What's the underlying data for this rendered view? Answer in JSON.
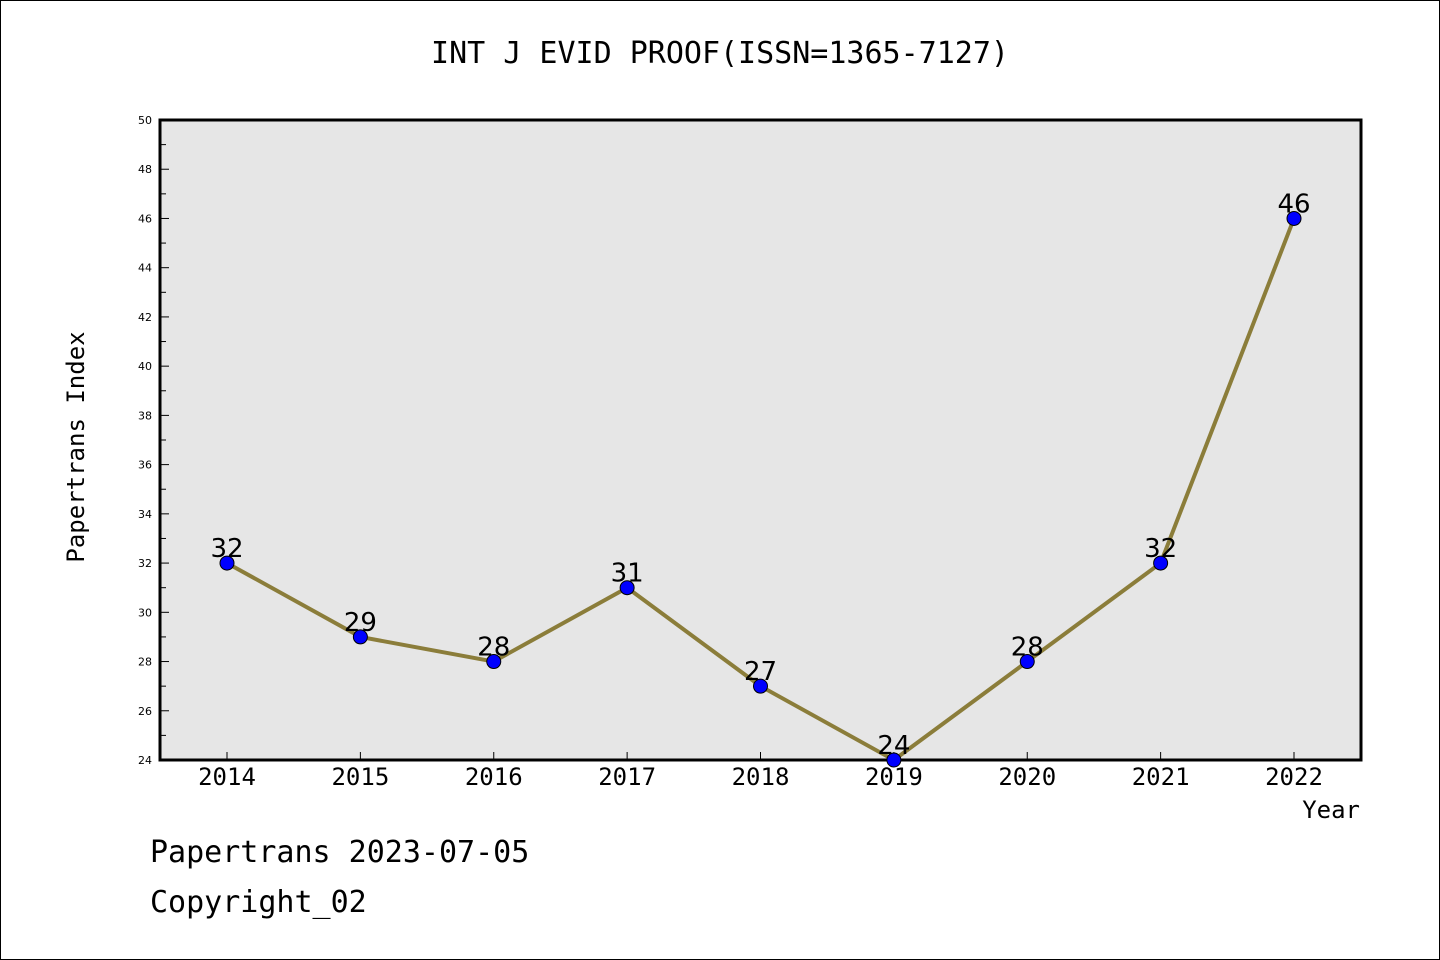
{
  "chart_data": {
    "type": "line",
    "title": "INT J EVID PROOF(ISSN=1365-7127)",
    "xlabel": "Year",
    "ylabel": "Papertrans Index",
    "categories": [
      "2014",
      "2015",
      "2016",
      "2017",
      "2018",
      "2019",
      "2020",
      "2021",
      "2022"
    ],
    "series": [
      {
        "values": [
          32,
          29,
          28,
          31,
          27,
          24,
          28,
          32,
          46
        ],
        "line_color": "#8B7D3A",
        "marker_color": "#0000FF"
      }
    ],
    "ylim": [
      24,
      50
    ],
    "yticks": [
      24,
      26,
      28,
      30,
      32,
      34,
      36,
      38,
      40,
      42,
      44,
      46,
      48,
      50
    ],
    "grid": false,
    "plot_background": "#E6E6E6",
    "data_labels": true
  },
  "footer": {
    "line1": "Papertrans 2023-07-05",
    "line2": "Copyright_02"
  }
}
